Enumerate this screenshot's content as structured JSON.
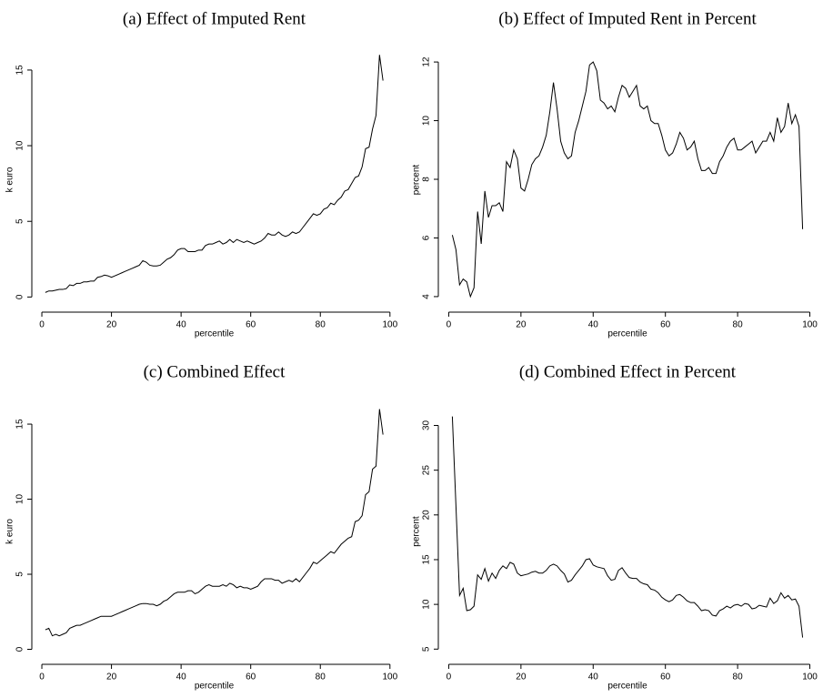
{
  "chart_data": [
    {
      "type": "line",
      "title": "(a) Effect of Imputed Rent",
      "xlabel": "percentile",
      "ylabel": "k euro",
      "color": "#000000",
      "x": [
        1,
        2,
        3,
        4,
        5,
        6,
        7,
        8,
        9,
        10,
        11,
        12,
        13,
        14,
        15,
        16,
        17,
        18,
        19,
        20,
        21,
        22,
        23,
        24,
        25,
        26,
        27,
        28,
        29,
        30,
        31,
        32,
        33,
        34,
        35,
        36,
        37,
        38,
        39,
        40,
        41,
        42,
        43,
        44,
        45,
        46,
        47,
        48,
        49,
        50,
        51,
        52,
        53,
        54,
        55,
        56,
        57,
        58,
        59,
        60,
        61,
        62,
        63,
        64,
        65,
        66,
        67,
        68,
        69,
        70,
        71,
        72,
        73,
        74,
        75,
        76,
        77,
        78,
        79,
        80,
        81,
        82,
        83,
        84,
        85,
        86,
        87,
        88,
        89,
        90,
        91,
        92,
        93,
        94,
        95,
        96,
        97,
        98
      ],
      "values": [
        0.3,
        0.4,
        0.4,
        0.45,
        0.5,
        0.5,
        0.55,
        0.8,
        0.75,
        0.9,
        0.9,
        1.0,
        1.0,
        1.05,
        1.05,
        1.3,
        1.35,
        1.45,
        1.4,
        1.3,
        1.4,
        1.5,
        1.6,
        1.7,
        1.8,
        1.9,
        2.0,
        2.1,
        2.4,
        2.3,
        2.1,
        2.05,
        2.05,
        2.1,
        2.3,
        2.5,
        2.6,
        2.8,
        3.1,
        3.2,
        3.2,
        3.0,
        3.0,
        3.0,
        3.1,
        3.1,
        3.4,
        3.5,
        3.5,
        3.6,
        3.7,
        3.5,
        3.6,
        3.8,
        3.6,
        3.8,
        3.7,
        3.6,
        3.7,
        3.6,
        3.5,
        3.6,
        3.7,
        3.9,
        4.2,
        4.1,
        4.1,
        4.3,
        4.1,
        4.0,
        4.1,
        4.3,
        4.2,
        4.3,
        4.6,
        4.9,
        5.2,
        5.5,
        5.4,
        5.5,
        5.8,
        5.9,
        6.2,
        6.1,
        6.4,
        6.6,
        7.0,
        7.1,
        7.5,
        7.9,
        8.0,
        8.6,
        9.8,
        9.9,
        11.1,
        12.0,
        16.0,
        14.3
      ],
      "xlim": [
        -2.88,
        101.88
      ],
      "xticks": [
        0,
        20,
        40,
        60,
        80,
        100
      ],
      "ylim": [
        -1,
        16.5
      ],
      "yticks": [
        0,
        5,
        10,
        15
      ]
    },
    {
      "type": "line",
      "title": "(b) Effect of Imputed Rent in Percent",
      "xlabel": "percentile",
      "ylabel": "percent",
      "color": "#000000",
      "x": [
        1,
        2,
        3,
        4,
        5,
        6,
        7,
        8,
        9,
        10,
        11,
        12,
        13,
        14,
        15,
        16,
        17,
        18,
        19,
        20,
        21,
        22,
        23,
        24,
        25,
        26,
        27,
        28,
        29,
        30,
        31,
        32,
        33,
        34,
        35,
        36,
        37,
        38,
        39,
        40,
        41,
        42,
        43,
        44,
        45,
        46,
        47,
        48,
        49,
        50,
        51,
        52,
        53,
        54,
        55,
        56,
        57,
        58,
        59,
        60,
        61,
        62,
        63,
        64,
        65,
        66,
        67,
        68,
        69,
        70,
        71,
        72,
        73,
        74,
        75,
        76,
        77,
        78,
        79,
        80,
        81,
        82,
        83,
        84,
        85,
        86,
        87,
        88,
        89,
        90,
        91,
        92,
        93,
        94,
        95,
        96,
        97,
        98
      ],
      "values": [
        6.1,
        5.6,
        4.4,
        4.6,
        4.5,
        4.0,
        4.3,
        6.9,
        5.8,
        7.6,
        6.7,
        7.1,
        7.1,
        7.2,
        6.9,
        8.6,
        8.4,
        9.0,
        8.7,
        7.7,
        7.6,
        8.0,
        8.5,
        8.7,
        8.8,
        9.1,
        9.5,
        10.3,
        11.3,
        10.4,
        9.3,
        8.9,
        8.7,
        8.8,
        9.6,
        10.0,
        10.5,
        11.0,
        11.9,
        12.0,
        11.7,
        10.7,
        10.6,
        10.4,
        10.5,
        10.3,
        10.8,
        11.2,
        11.1,
        10.8,
        11.0,
        11.2,
        10.5,
        10.4,
        10.5,
        10.0,
        9.9,
        9.9,
        9.5,
        9.0,
        8.8,
        8.9,
        9.2,
        9.6,
        9.4,
        9.0,
        9.1,
        9.3,
        8.7,
        8.3,
        8.3,
        8.4,
        8.2,
        8.2,
        8.6,
        8.8,
        9.1,
        9.3,
        9.4,
        9.0,
        9.0,
        9.1,
        9.2,
        9.3,
        8.9,
        9.1,
        9.3,
        9.3,
        9.6,
        9.3,
        10.1,
        9.6,
        9.8,
        10.6,
        9.9,
        10.2,
        9.8,
        6.3
      ],
      "xlim": [
        -2.88,
        101.88
      ],
      "xticks": [
        0,
        20,
        40,
        60,
        80,
        100
      ],
      "ylim": [
        3.47,
        12.5
      ],
      "yticks": [
        4,
        6,
        8,
        10,
        12
      ]
    },
    {
      "type": "line",
      "title": "(c) Combined Effect",
      "xlabel": "percentile",
      "ylabel": "k euro",
      "color": "#000000",
      "x": [
        1,
        2,
        3,
        4,
        5,
        6,
        7,
        8,
        9,
        10,
        11,
        12,
        13,
        14,
        15,
        16,
        17,
        18,
        19,
        20,
        21,
        22,
        23,
        24,
        25,
        26,
        27,
        28,
        29,
        30,
        31,
        32,
        33,
        34,
        35,
        36,
        37,
        38,
        39,
        40,
        41,
        42,
        43,
        44,
        45,
        46,
        47,
        48,
        49,
        50,
        51,
        52,
        53,
        54,
        55,
        56,
        57,
        58,
        59,
        60,
        61,
        62,
        63,
        64,
        65,
        66,
        67,
        68,
        69,
        70,
        71,
        72,
        73,
        74,
        75,
        76,
        77,
        78,
        79,
        80,
        81,
        82,
        83,
        84,
        85,
        86,
        87,
        88,
        89,
        90,
        91,
        92,
        93,
        94,
        95,
        96,
        97,
        98
      ],
      "values": [
        1.3,
        1.4,
        0.9,
        1.0,
        0.9,
        1.0,
        1.1,
        1.4,
        1.5,
        1.6,
        1.6,
        1.7,
        1.8,
        1.9,
        2.0,
        2.1,
        2.2,
        2.2,
        2.2,
        2.2,
        2.3,
        2.4,
        2.5,
        2.6,
        2.7,
        2.8,
        2.9,
        3.0,
        3.05,
        3.05,
        3.0,
        3.0,
        2.9,
        3.0,
        3.2,
        3.3,
        3.5,
        3.7,
        3.8,
        3.8,
        3.8,
        3.9,
        3.9,
        3.7,
        3.8,
        4.0,
        4.2,
        4.3,
        4.2,
        4.2,
        4.2,
        4.3,
        4.2,
        4.4,
        4.3,
        4.1,
        4.2,
        4.1,
        4.1,
        4.0,
        4.1,
        4.2,
        4.5,
        4.7,
        4.7,
        4.7,
        4.6,
        4.6,
        4.4,
        4.5,
        4.6,
        4.5,
        4.7,
        4.5,
        4.8,
        5.1,
        5.4,
        5.8,
        5.7,
        5.9,
        6.1,
        6.3,
        6.5,
        6.4,
        6.7,
        7.0,
        7.2,
        7.4,
        7.5,
        8.5,
        8.6,
        8.9,
        10.3,
        10.5,
        12.0,
        12.2,
        16.0,
        14.3
      ],
      "xlim": [
        -2.88,
        101.88
      ],
      "xticks": [
        0,
        20,
        40,
        60,
        80,
        100
      ],
      "ylim": [
        -1,
        16.7
      ],
      "yticks": [
        0,
        5,
        10,
        15
      ]
    },
    {
      "type": "line",
      "title": "(d) Combined Effect in Percent",
      "xlabel": "percentile",
      "ylabel": "percent",
      "color": "#000000",
      "x": [
        1,
        2,
        3,
        4,
        5,
        6,
        7,
        8,
        9,
        10,
        11,
        12,
        13,
        14,
        15,
        16,
        17,
        18,
        19,
        20,
        21,
        22,
        23,
        24,
        25,
        26,
        27,
        28,
        29,
        30,
        31,
        32,
        33,
        34,
        35,
        36,
        37,
        38,
        39,
        40,
        41,
        42,
        43,
        44,
        45,
        46,
        47,
        48,
        49,
        50,
        51,
        52,
        53,
        54,
        55,
        56,
        57,
        58,
        59,
        60,
        61,
        62,
        63,
        64,
        65,
        66,
        67,
        68,
        69,
        70,
        71,
        72,
        73,
        74,
        75,
        76,
        77,
        78,
        79,
        80,
        81,
        82,
        83,
        84,
        85,
        86,
        87,
        88,
        89,
        90,
        91,
        92,
        93,
        94,
        95,
        96,
        97,
        98
      ],
      "values": [
        31.0,
        21.0,
        11.0,
        11.8,
        9.3,
        9.4,
        9.8,
        13.3,
        12.8,
        14.0,
        12.6,
        13.5,
        12.9,
        13.8,
        14.3,
        14.0,
        14.7,
        14.5,
        13.5,
        13.2,
        13.3,
        13.4,
        13.6,
        13.7,
        13.5,
        13.5,
        13.8,
        14.3,
        14.5,
        14.3,
        13.8,
        13.4,
        12.5,
        12.7,
        13.3,
        13.8,
        14.3,
        15.0,
        15.1,
        14.4,
        14.2,
        14.1,
        14.0,
        13.2,
        12.7,
        12.8,
        13.8,
        14.1,
        13.5,
        13.0,
        12.9,
        12.9,
        12.5,
        12.3,
        12.2,
        11.7,
        11.6,
        11.3,
        10.8,
        10.5,
        10.3,
        10.5,
        11.0,
        11.1,
        10.8,
        10.4,
        10.2,
        10.2,
        9.8,
        9.3,
        9.4,
        9.3,
        8.8,
        8.7,
        9.3,
        9.5,
        9.8,
        9.6,
        9.9,
        10.0,
        9.8,
        10.1,
        10.0,
        9.5,
        9.6,
        9.9,
        9.8,
        9.7,
        10.7,
        10.1,
        10.4,
        11.3,
        10.7,
        11.0,
        10.5,
        10.6,
        9.8,
        6.3
      ],
      "xlim": [
        -2.88,
        101.88
      ],
      "xticks": [
        0,
        20,
        40,
        60,
        80,
        100
      ],
      "ylim": [
        3.3,
        33
      ],
      "yticks": [
        5,
        10,
        15,
        20,
        25,
        30
      ]
    }
  ]
}
